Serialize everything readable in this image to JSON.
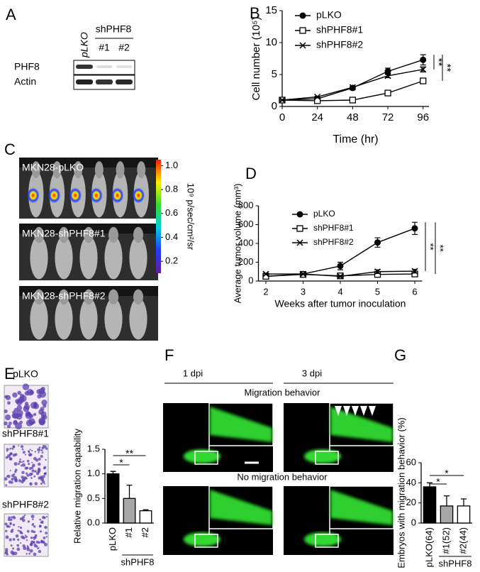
{
  "figure": {
    "panel_labels": [
      "A",
      "B",
      "C",
      "D",
      "E",
      "F",
      "G"
    ],
    "blot": {
      "lanes": [
        "pLKO",
        "#1",
        "#2"
      ],
      "group": "shPHF8",
      "rows": [
        "PHF8",
        "Actin"
      ]
    },
    "imaging": {
      "groups": [
        "MKN28-pLKO",
        "MKN28-shPHF8#1",
        "MKN28-shPHF8#2"
      ],
      "colorbar_label": "10⁹ p/sec/cm²/sr",
      "colorbar_lim": [
        0.1,
        1.05
      ],
      "colorbar_ticks": [
        0.2,
        0.4,
        0.6,
        0.8,
        {
          "value": 1,
          "label": "1.0"
        }
      ]
    },
    "transwell": {
      "groups": [
        "pLKO",
        "shPHF8#1",
        "shPHF8#2"
      ]
    },
    "zebrafish": {
      "columns": [
        "1 dpi",
        "3 dpi"
      ],
      "rows": [
        "Migration behavior",
        "No migration behavior"
      ]
    }
  },
  "chart_data": [
    {
      "type": "line",
      "y_label": "Cell number (10⁵)",
      "x_label": "Time (hr)",
      "x": [
        0,
        24,
        48,
        72,
        96
      ],
      "xlim": [
        0,
        100
      ],
      "xticks": [
        0,
        24,
        48,
        72,
        96
      ],
      "ylim": [
        0,
        15
      ],
      "yticks": [
        0,
        5,
        10,
        15
      ],
      "legend": "upper left",
      "series": [
        {
          "name": "pLKO",
          "marker": "circle",
          "color": "#000000",
          "values": [
            1,
            1.2,
            2.9,
            5.5,
            7.3
          ],
          "errors": [
            0.1,
            0.1,
            0.2,
            0.5,
            0.8
          ]
        },
        {
          "name": "shPHF8#1",
          "marker": "square",
          "color": "#000000",
          "values": [
            1,
            0.9,
            1.0,
            2.1,
            4.0
          ],
          "errors": [
            0.1,
            0.1,
            0.1,
            0.2,
            0.3
          ]
        },
        {
          "name": "shPHF8#2",
          "marker": "x",
          "color": "#000000",
          "values": [
            1,
            1.5,
            3.0,
            4.8,
            5.8
          ],
          "errors": [
            0.1,
            0.1,
            0.2,
            0.3,
            0.4
          ]
        }
      ],
      "annotations": [
        "**",
        "**"
      ]
    },
    {
      "type": "line",
      "y_label": "Average tumor volume (mm³)",
      "x_label": "Weeks after tumor inoculation",
      "x": [
        2,
        3,
        4,
        5,
        6
      ],
      "xlim": [
        1.8,
        6.2
      ],
      "xticks": [
        2,
        3,
        4,
        5,
        6
      ],
      "ylim": [
        0,
        800
      ],
      "yticks": [
        0,
        200,
        400,
        600,
        800
      ],
      "legend": "upper left",
      "series": [
        {
          "name": "pLKO",
          "marker": "circle",
          "color": "#000000",
          "values": [
            50,
            75,
            160,
            410,
            560
          ],
          "errors": [
            10,
            10,
            40,
            50,
            65
          ]
        },
        {
          "name": "shPHF8#1",
          "marker": "square",
          "color": "#000000",
          "values": [
            50,
            70,
            55,
            70,
            75
          ],
          "errors": [
            8,
            8,
            10,
            15,
            20
          ]
        },
        {
          "name": "shPHF8#2",
          "marker": "x",
          "color": "#000000",
          "values": [
            75,
            75,
            50,
            100,
            105
          ],
          "errors": [
            8,
            8,
            10,
            20,
            20
          ]
        }
      ],
      "annotations": [
        "**",
        "**"
      ]
    },
    {
      "type": "bar",
      "y_label": "Relative migration capability",
      "group_label": "shPHF8",
      "categories": [
        "pLKO",
        "#1",
        "#2"
      ],
      "values": [
        1.0,
        0.5,
        0.25
      ],
      "errors": [
        0.05,
        0.27,
        0.02
      ],
      "colors": [
        "#000000",
        "#a6a6a6",
        "#ffffff"
      ],
      "ylim": [
        0,
        1.5
      ],
      "yticks": [
        {
          "value": 0,
          "label": "0.0"
        },
        0.5,
        {
          "value": 1,
          "label": "1.0"
        },
        1.5
      ],
      "annotations": [
        "*",
        "**"
      ]
    },
    {
      "type": "bar",
      "y_label": "Embryos with migration behavior (%)",
      "group_label": "shPHF8",
      "categories": [
        "pLKO(64)",
        "#1(52)",
        "#2(44)"
      ],
      "values": [
        36,
        17,
        17
      ],
      "errors": [
        4,
        10,
        7
      ],
      "colors": [
        "#000000",
        "#a6a6a6",
        "#ffffff"
      ],
      "ylim": [
        0,
        60
      ],
      "yticks": [
        0,
        20,
        40,
        60
      ],
      "annotations": [
        "*",
        "*"
      ]
    }
  ]
}
